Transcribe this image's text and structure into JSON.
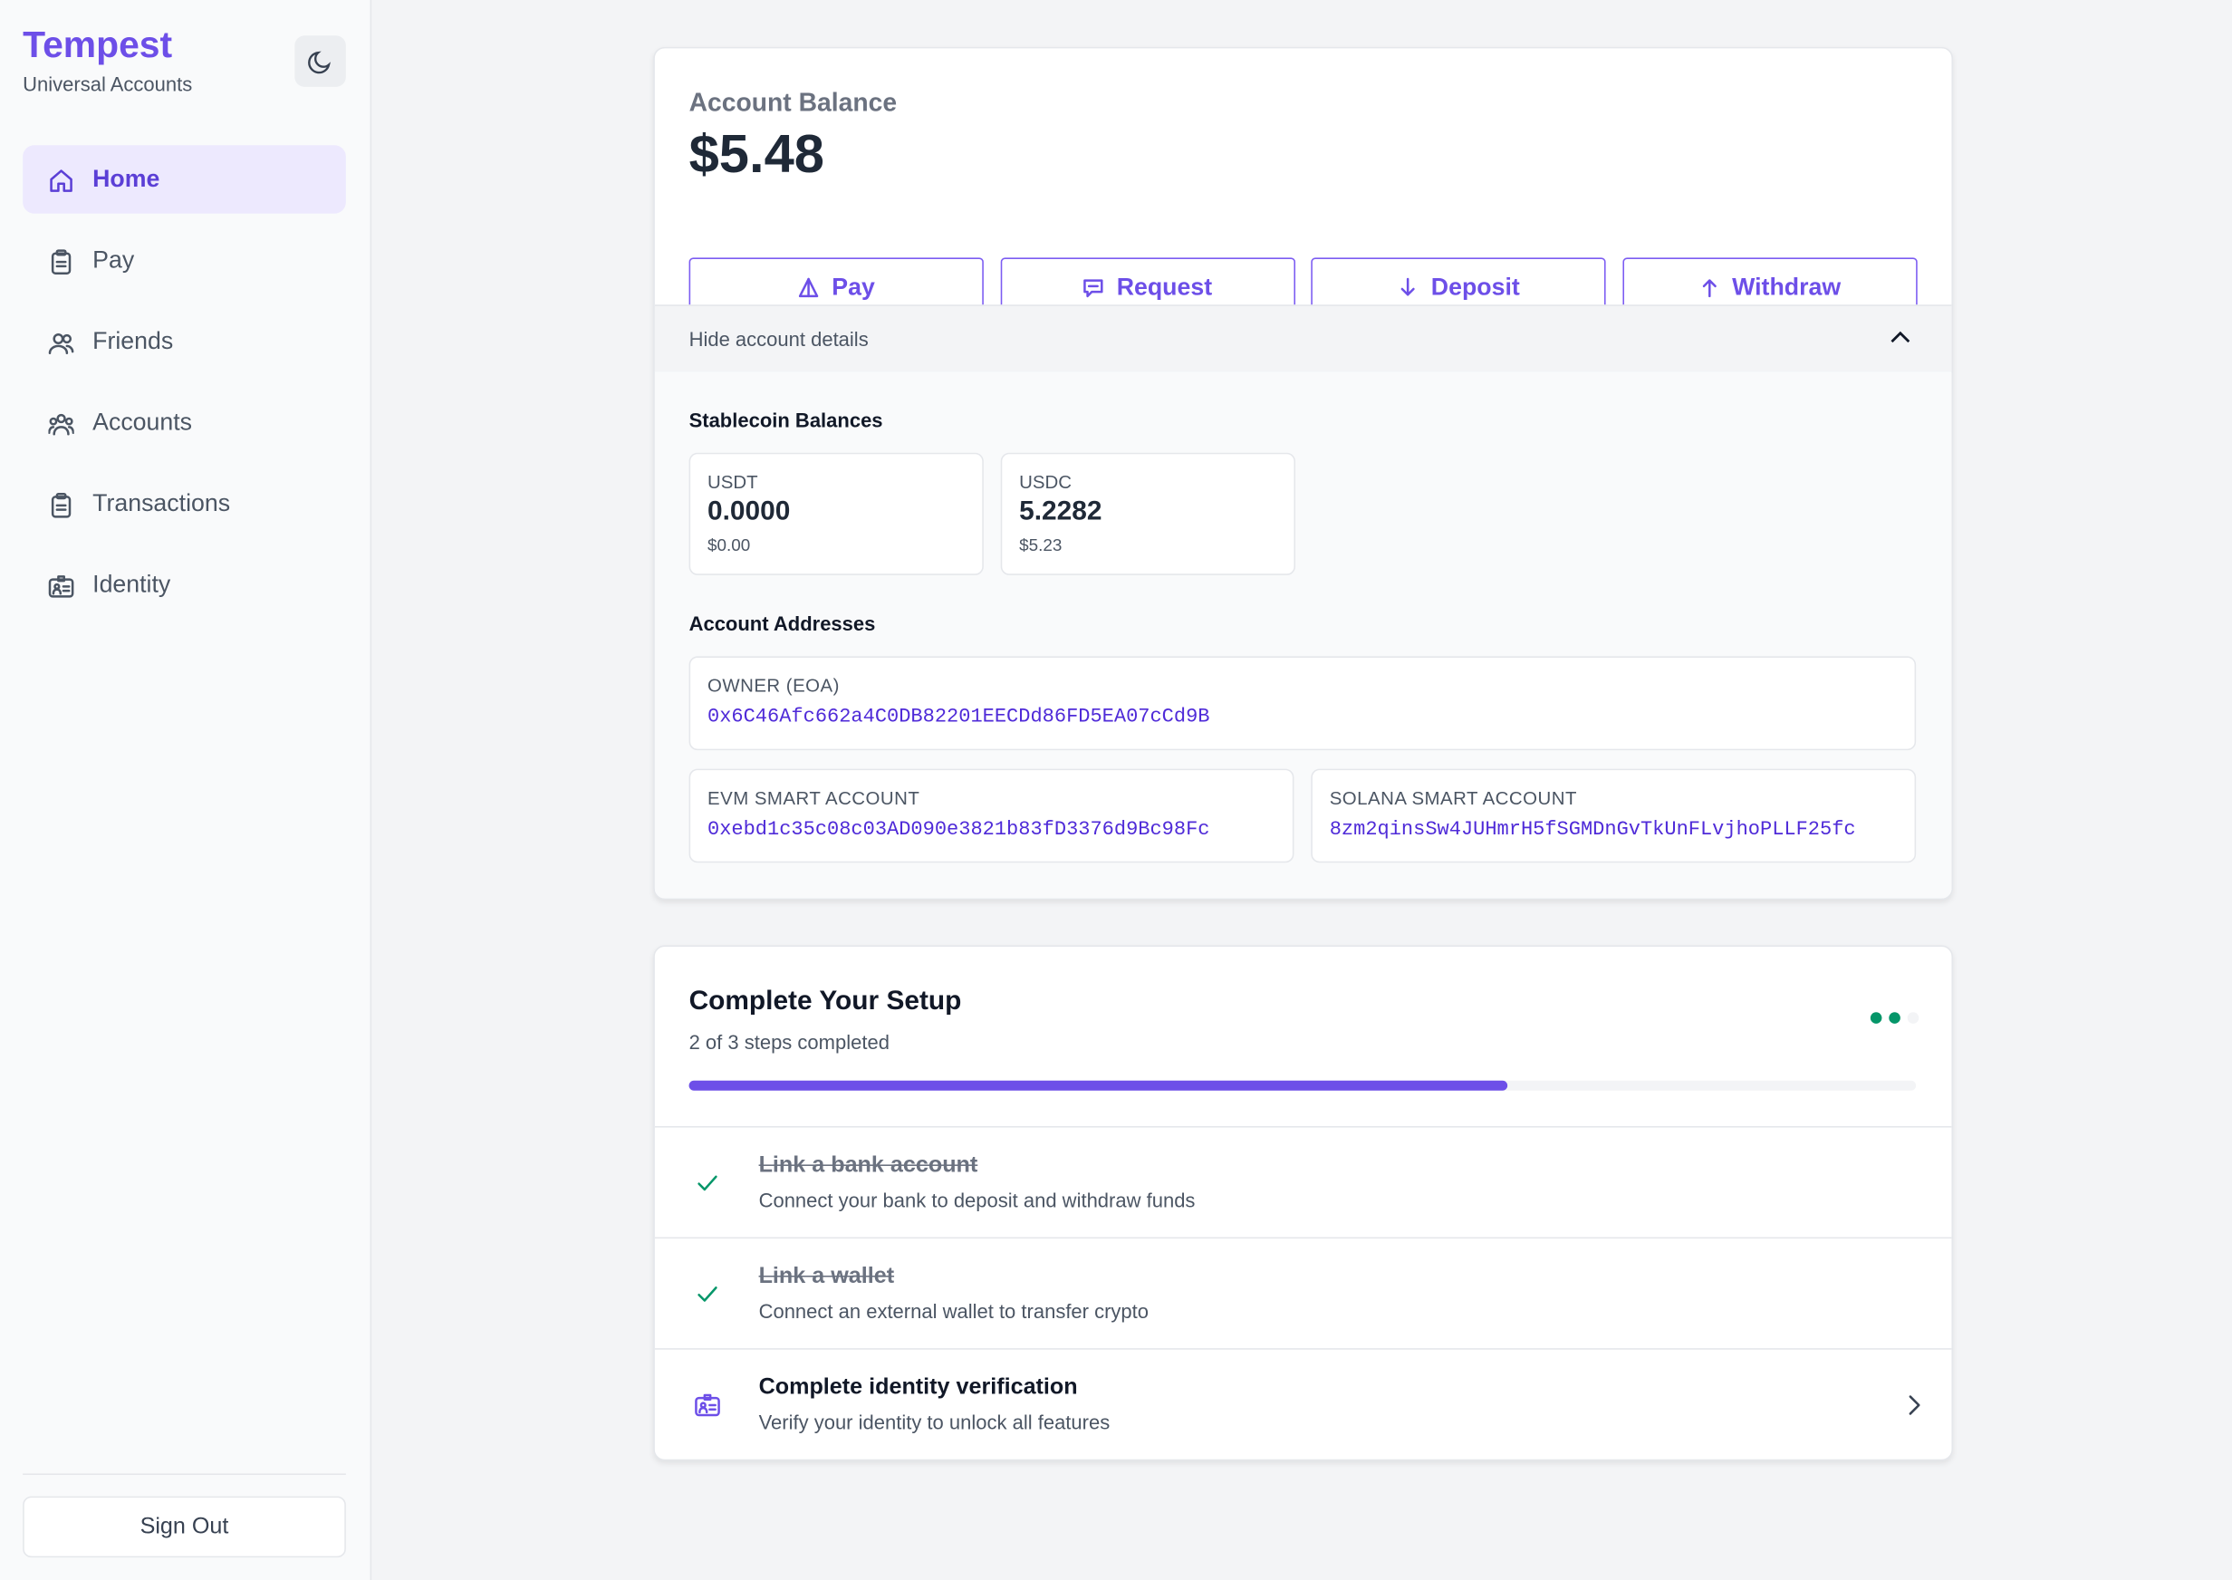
{
  "sidebar": {
    "brand": "Tempest",
    "tagline": "Universal Accounts",
    "nav": [
      {
        "label": "Home",
        "active": true
      },
      {
        "label": "Pay",
        "active": false
      },
      {
        "label": "Friends",
        "active": false
      },
      {
        "label": "Accounts",
        "active": false
      },
      {
        "label": "Transactions",
        "active": false
      },
      {
        "label": "Identity",
        "active": false
      }
    ],
    "sign_out": "Sign Out"
  },
  "balance": {
    "label": "Account Balance",
    "amount": "$5.48",
    "actions": [
      "Pay",
      "Request",
      "Deposit",
      "Withdraw"
    ],
    "toggle": "Hide account details",
    "stablecoins_title": "Stablecoin Balances",
    "stablecoins": [
      {
        "symbol": "USDT",
        "amount": "0.0000",
        "usd": "$0.00"
      },
      {
        "symbol": "USDC",
        "amount": "5.2282",
        "usd": "$5.23"
      }
    ],
    "addresses_title": "Account Addresses",
    "addresses": [
      {
        "label": "OWNER (EOA)",
        "address": "0x6C46Afc662a4C0DB82201EECDd86FD5EA07cCd9B"
      },
      {
        "label": "EVM SMART ACCOUNT",
        "address": "0xebd1c35c08c03AD090e3821b83fD3376d9Bc98Fc"
      },
      {
        "label": "SOLANA SMART ACCOUNT",
        "address": "8zm2qinsSw4JUHmrH5fSGMDnGvTkUnFLvjhoPLLF25fc"
      }
    ]
  },
  "setup": {
    "title": "Complete Your Setup",
    "progress_text": "2 of 3 steps completed",
    "steps": [
      {
        "title": "Link a bank account",
        "description": "Connect your bank to deposit and withdraw funds",
        "done": true
      },
      {
        "title": "Link a wallet",
        "description": "Connect an external wallet to transfer crypto",
        "done": true
      },
      {
        "title": "Complete identity verification",
        "description": "Verify your identity to unlock all features",
        "done": false
      }
    ]
  }
}
